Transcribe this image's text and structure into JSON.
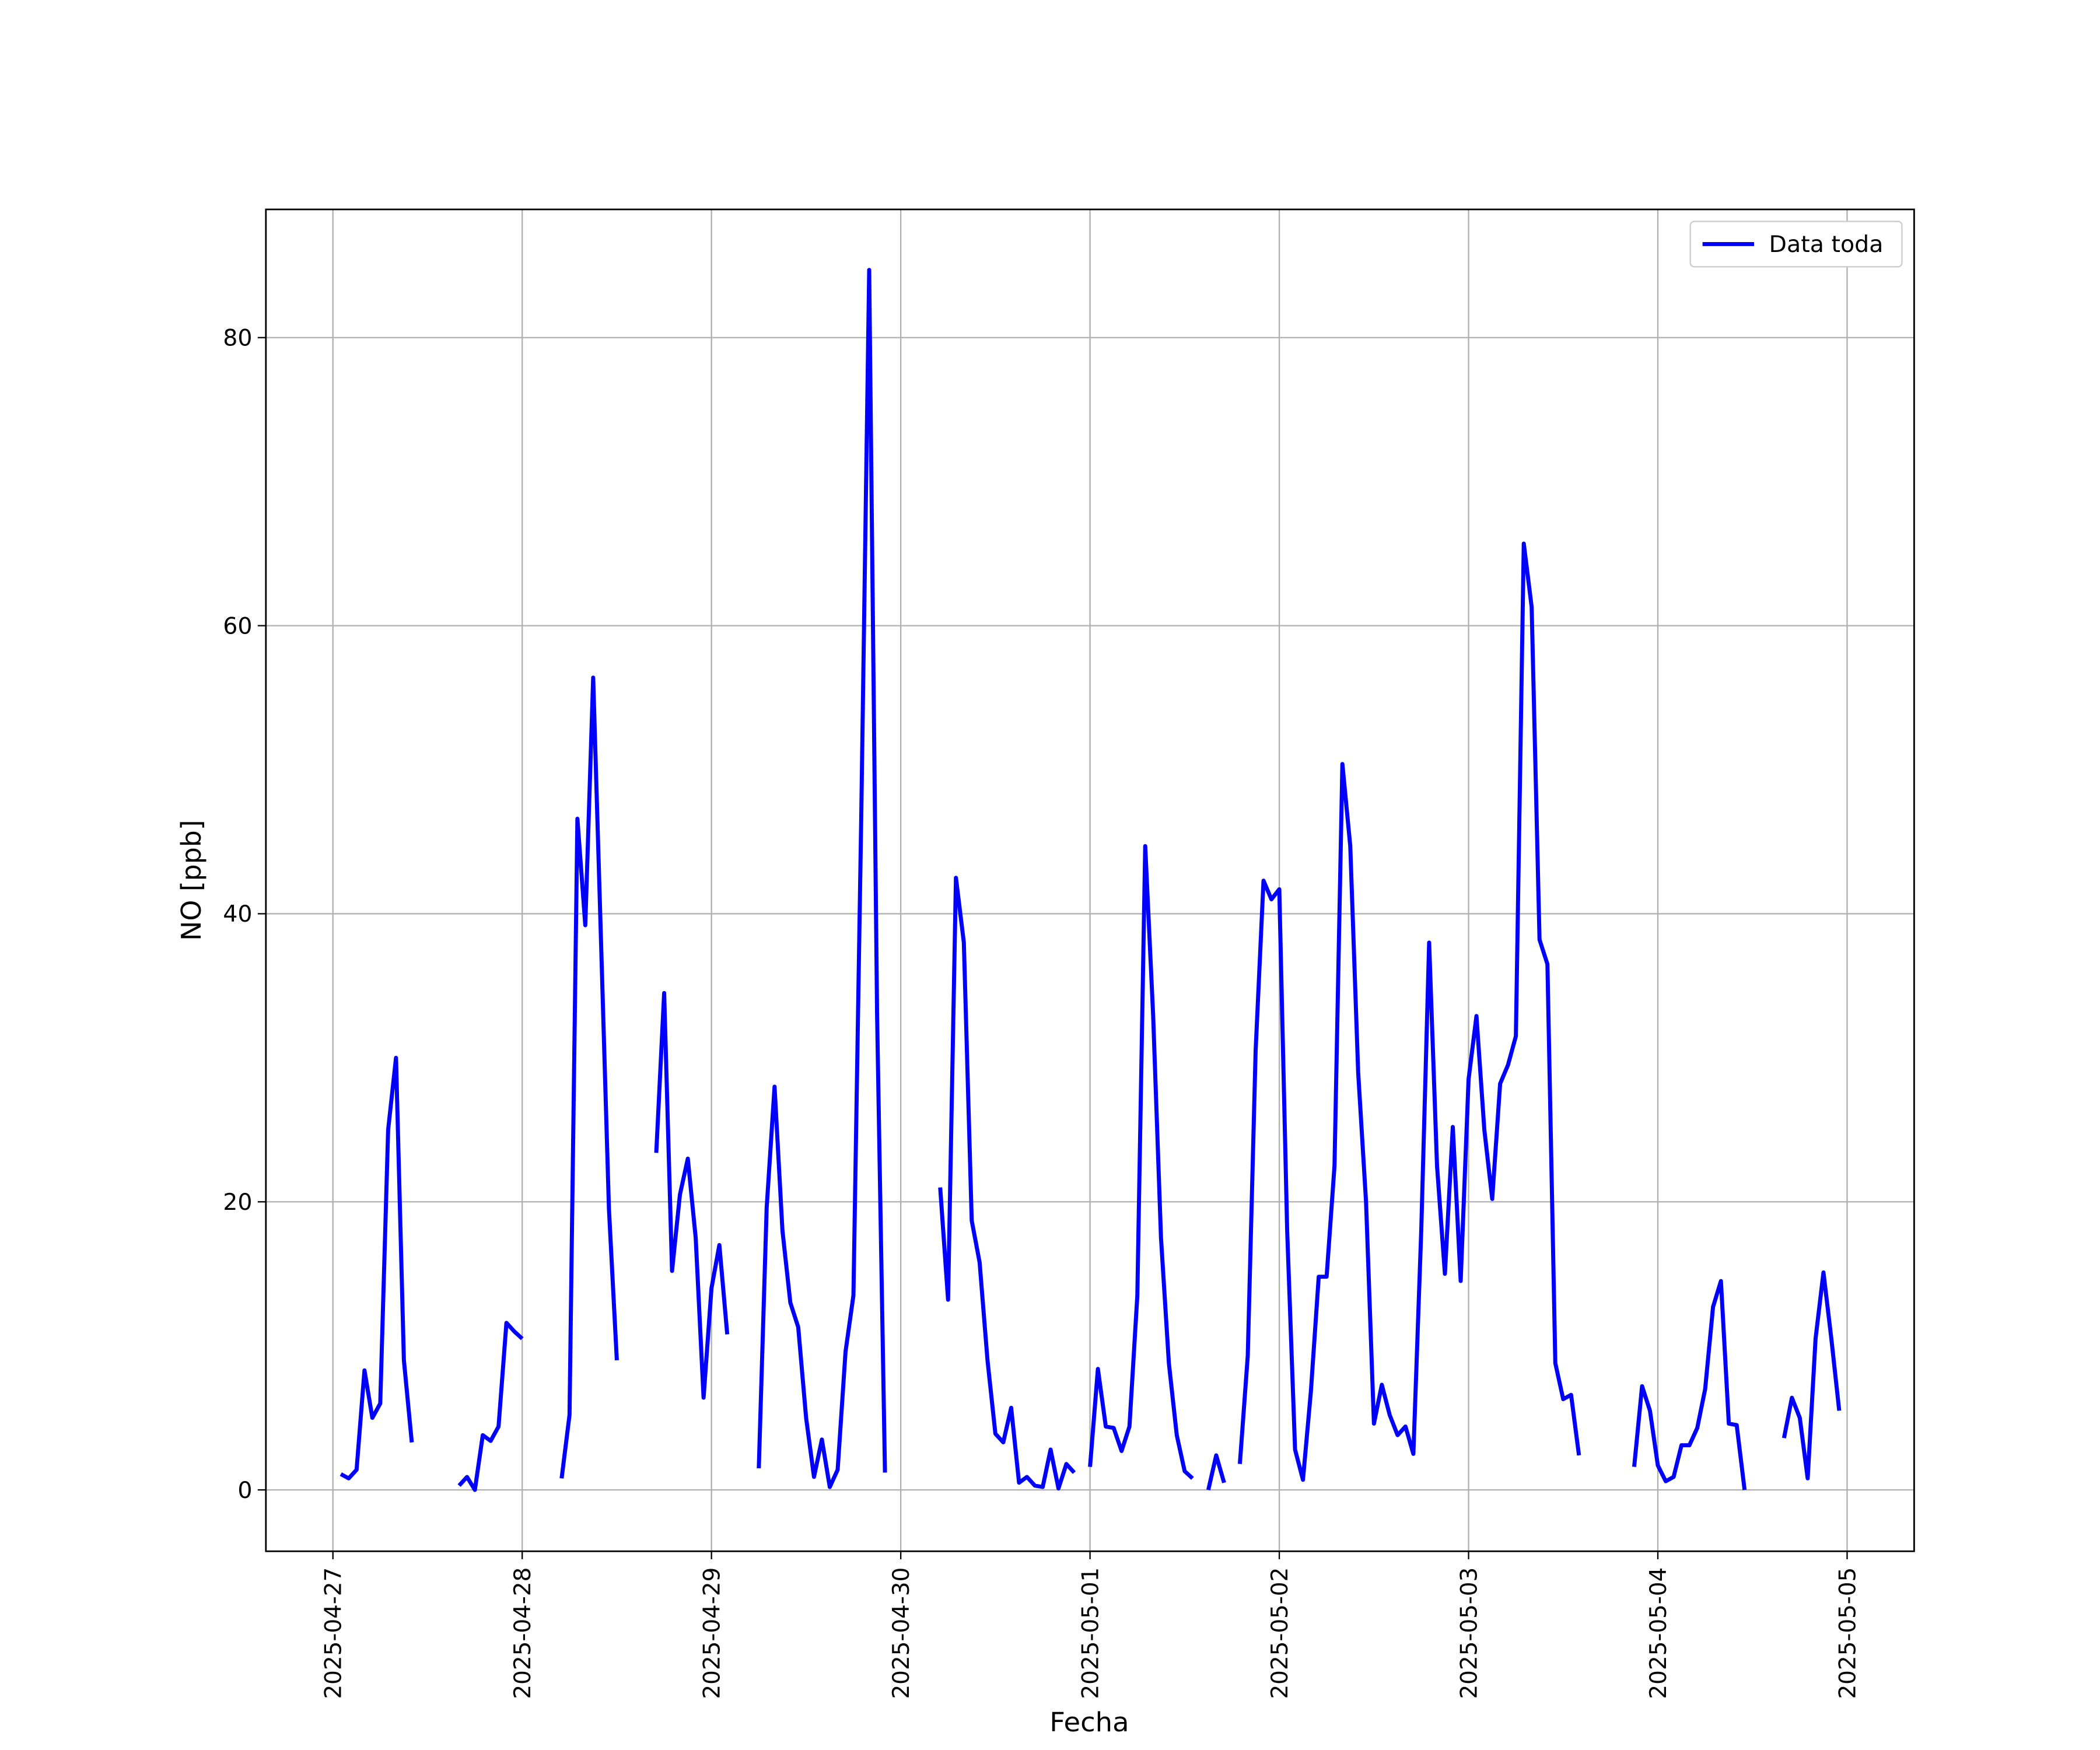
{
  "chart_data": {
    "type": "line",
    "xlabel": "Fecha",
    "ylabel": "NO [ppb]",
    "x": [
      "2025-04-27 01:00",
      "2025-04-27 02:00",
      "2025-04-27 03:00",
      "2025-04-27 04:00",
      "2025-04-27 05:00",
      "2025-04-27 06:00",
      "2025-04-27 07:00",
      "2025-04-27 08:00",
      "2025-04-27 09:00",
      "2025-04-27 10:00",
      "2025-04-27 11:00",
      "2025-04-27 12:00",
      "2025-04-27 13:00",
      "2025-04-27 14:00",
      "2025-04-27 15:00",
      "2025-04-27 16:00",
      "2025-04-27 17:00",
      "2025-04-27 18:00",
      "2025-04-27 19:00",
      "2025-04-27 20:00",
      "2025-04-27 21:00",
      "2025-04-27 22:00",
      "2025-04-27 23:00",
      "2025-04-28 00:00",
      "2025-04-28 01:00",
      "2025-04-28 02:00",
      "2025-04-28 03:00",
      "2025-04-28 04:00",
      "2025-04-28 05:00",
      "2025-04-28 06:00",
      "2025-04-28 07:00",
      "2025-04-28 08:00",
      "2025-04-28 09:00",
      "2025-04-28 10:00",
      "2025-04-28 11:00",
      "2025-04-28 12:00",
      "2025-04-28 13:00",
      "2025-04-28 14:00",
      "2025-04-28 15:00",
      "2025-04-28 16:00",
      "2025-04-28 17:00",
      "2025-04-28 18:00",
      "2025-04-28 19:00",
      "2025-04-28 20:00",
      "2025-04-28 21:00",
      "2025-04-28 22:00",
      "2025-04-28 23:00",
      "2025-04-29 00:00",
      "2025-04-29 01:00",
      "2025-04-29 02:00",
      "2025-04-29 03:00",
      "2025-04-29 04:00",
      "2025-04-29 05:00",
      "2025-04-29 06:00",
      "2025-04-29 07:00",
      "2025-04-29 08:00",
      "2025-04-29 09:00",
      "2025-04-29 10:00",
      "2025-04-29 11:00",
      "2025-04-29 12:00",
      "2025-04-29 13:00",
      "2025-04-29 14:00",
      "2025-04-29 15:00",
      "2025-04-29 16:00",
      "2025-04-29 17:00",
      "2025-04-29 18:00",
      "2025-04-29 19:00",
      "2025-04-29 20:00",
      "2025-04-29 21:00",
      "2025-04-29 22:00",
      "2025-04-29 23:00",
      "2025-04-30 00:00",
      "2025-04-30 01:00",
      "2025-04-30 02:00",
      "2025-04-30 03:00",
      "2025-04-30 04:00",
      "2025-04-30 05:00",
      "2025-04-30 06:00",
      "2025-04-30 07:00",
      "2025-04-30 08:00",
      "2025-04-30 09:00",
      "2025-04-30 10:00",
      "2025-04-30 11:00",
      "2025-04-30 12:00",
      "2025-04-30 13:00",
      "2025-04-30 14:00",
      "2025-04-30 15:00",
      "2025-04-30 16:00",
      "2025-04-30 17:00",
      "2025-04-30 18:00",
      "2025-04-30 19:00",
      "2025-04-30 20:00",
      "2025-04-30 21:00",
      "2025-04-30 22:00",
      "2025-04-30 23:00",
      "2025-05-01 00:00",
      "2025-05-01 01:00",
      "2025-05-01 02:00",
      "2025-05-01 03:00",
      "2025-05-01 04:00",
      "2025-05-01 05:00",
      "2025-05-01 06:00",
      "2025-05-01 07:00",
      "2025-05-01 08:00",
      "2025-05-01 09:00",
      "2025-05-01 10:00",
      "2025-05-01 11:00",
      "2025-05-01 12:00",
      "2025-05-01 13:00",
      "2025-05-01 14:00",
      "2025-05-01 15:00",
      "2025-05-01 16:00",
      "2025-05-01 17:00",
      "2025-05-01 18:00",
      "2025-05-01 19:00",
      "2025-05-01 20:00",
      "2025-05-01 21:00",
      "2025-05-01 22:00",
      "2025-05-01 23:00",
      "2025-05-02 00:00",
      "2025-05-02 01:00",
      "2025-05-02 02:00",
      "2025-05-02 03:00",
      "2025-05-02 04:00",
      "2025-05-02 05:00",
      "2025-05-02 06:00",
      "2025-05-02 07:00",
      "2025-05-02 08:00",
      "2025-05-02 09:00",
      "2025-05-02 10:00",
      "2025-05-02 11:00",
      "2025-05-02 12:00",
      "2025-05-02 13:00",
      "2025-05-02 14:00",
      "2025-05-02 15:00",
      "2025-05-02 16:00",
      "2025-05-02 17:00",
      "2025-05-02 18:00",
      "2025-05-02 19:00",
      "2025-05-02 20:00",
      "2025-05-02 21:00",
      "2025-05-02 22:00",
      "2025-05-02 23:00",
      "2025-05-03 00:00",
      "2025-05-03 01:00",
      "2025-05-03 02:00",
      "2025-05-03 03:00",
      "2025-05-03 04:00",
      "2025-05-03 05:00",
      "2025-05-03 06:00",
      "2025-05-03 07:00",
      "2025-05-03 08:00",
      "2025-05-03 09:00",
      "2025-05-03 10:00",
      "2025-05-03 11:00",
      "2025-05-03 12:00",
      "2025-05-03 13:00",
      "2025-05-03 14:00",
      "2025-05-03 15:00",
      "2025-05-03 16:00",
      "2025-05-03 17:00",
      "2025-05-03 18:00",
      "2025-05-03 19:00",
      "2025-05-03 20:00",
      "2025-05-03 21:00",
      "2025-05-03 22:00",
      "2025-05-03 23:00",
      "2025-05-04 00:00",
      "2025-05-04 01:00",
      "2025-05-04 02:00",
      "2025-05-04 03:00",
      "2025-05-04 04:00",
      "2025-05-04 05:00",
      "2025-05-04 06:00",
      "2025-05-04 07:00",
      "2025-05-04 08:00",
      "2025-05-04 09:00",
      "2025-05-04 10:00",
      "2025-05-04 11:00",
      "2025-05-04 12:00",
      "2025-05-04 13:00",
      "2025-05-04 14:00",
      "2025-05-04 15:00",
      "2025-05-04 16:00",
      "2025-05-04 17:00",
      "2025-05-04 18:00",
      "2025-05-04 19:00",
      "2025-05-04 20:00",
      "2025-05-04 21:00",
      "2025-05-04 22:00",
      "2025-05-04 23:00"
    ],
    "series": [
      {
        "name": "Data toda",
        "color": "#0000ff",
        "values": [
          1.1,
          0.8,
          1.4,
          8.3,
          5,
          6,
          25,
          30,
          9,
          3.3,
          null,
          null,
          null,
          null,
          null,
          0.3,
          0.9,
          0,
          3.8,
          3.4,
          4.4,
          11.6,
          11,
          10.5,
          null,
          null,
          null,
          null,
          0.8,
          5.2,
          46.6,
          39.2,
          56.4,
          38,
          19.5,
          9,
          null,
          null,
          null,
          null,
          23.4,
          34.5,
          15.2,
          20.5,
          23,
          17.5,
          6.4,
          14,
          17,
          10.8,
          null,
          null,
          null,
          1.5,
          19.6,
          28,
          18,
          13,
          11.3,
          5,
          0.9,
          3.5,
          0.2,
          1.4,
          9.6,
          13.5,
          47,
          84.7,
          33,
          1.2,
          null,
          null,
          null,
          null,
          null,
          null,
          21,
          13.2,
          42.5,
          38,
          18.7,
          15.8,
          9,
          3.9,
          3.3,
          5.7,
          0.5,
          0.9,
          0.3,
          0.2,
          2.8,
          0.1,
          1.8,
          1.2,
          null,
          1.6,
          8.4,
          4.4,
          4.3,
          2.7,
          4.4,
          13.5,
          44.7,
          33,
          17.5,
          8.8,
          3.8,
          1.3,
          0.8,
          null,
          0,
          2.4,
          0.5,
          null,
          1.8,
          9.3,
          30.5,
          42.3,
          41,
          41.7,
          18,
          2.8,
          0.7,
          6.8,
          14.8,
          14.8,
          22.5,
          50.4,
          44.7,
          29,
          20,
          4.6,
          7.3,
          5.2,
          3.8,
          4.4,
          2.5,
          18,
          38,
          22.5,
          15,
          25.2,
          14.5,
          28.5,
          32.9,
          25,
          20.2,
          28.2,
          29.5,
          31.5,
          65.7,
          61.3,
          38.2,
          36.5,
          8.8,
          6.3,
          6.6,
          2.4,
          null,
          null,
          null,
          null,
          null,
          null,
          1.6,
          7.2,
          5.5,
          1.7,
          0.6,
          0.9,
          3.1,
          3.1,
          4.3,
          7,
          12.7,
          14.5,
          4.6,
          4.5,
          0,
          null,
          null,
          null,
          null,
          3.6,
          6.4,
          5,
          0.8,
          10.5,
          15.1,
          10.5,
          5.5
        ]
      }
    ],
    "xlim": [
      "2025-04-26 15:30",
      "2025-05-05 08:30"
    ],
    "xticks": [
      "2025-04-27",
      "2025-04-28",
      "2025-04-29",
      "2025-04-30",
      "2025-05-01",
      "2025-05-02",
      "2025-05-03",
      "2025-05-04",
      "2025-05-05"
    ],
    "ylim": [
      -4.26,
      88.9
    ],
    "yticks": [
      0,
      20,
      40,
      60,
      80
    ],
    "grid": true,
    "legend": "upper right"
  }
}
